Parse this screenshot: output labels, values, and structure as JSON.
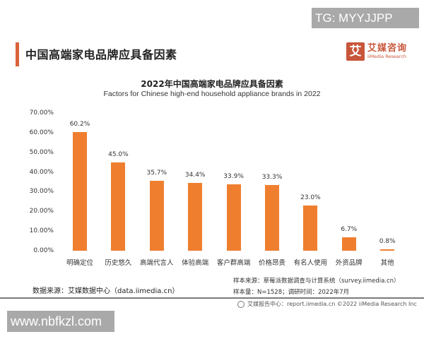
{
  "watermark_top": "TG: MYYJJPP",
  "watermark_bottom": "www.nbfkzl.com",
  "header": {
    "title": "中国高端家电品牌应具备因素",
    "accent_color": "#d9623b"
  },
  "logo": {
    "mark": "艾",
    "name_cn": "艾媒咨询",
    "name_en": "iiMedia Research",
    "color": "#c8563a"
  },
  "chart_data": {
    "type": "bar",
    "title": "2022年中国高端家电品牌应具备因素",
    "subtitle": "Factors for Chinese high-end household appliance brands in 2022",
    "categories": [
      "明确定位",
      "历史悠久",
      "高端代言人",
      "体验高端",
      "客户群高端",
      "价格昂贵",
      "有名人使用",
      "外资品牌",
      "其他"
    ],
    "values": [
      60.2,
      45.0,
      35.7,
      34.4,
      33.9,
      33.3,
      23.0,
      6.7,
      0.8
    ],
    "value_labels": [
      "60.2%",
      "45.0%",
      "35.7%",
      "34.4%",
      "33.9%",
      "33.3%",
      "23.0%",
      "6.7%",
      "0.8%"
    ],
    "yticks": [
      "0.00%",
      "10.00%",
      "20.00%",
      "30.00%",
      "40.00%",
      "50.00%",
      "60.00%",
      "70.00%"
    ],
    "xlabel": "",
    "ylabel": "",
    "ylim": [
      0,
      70
    ],
    "grid": false,
    "legend": "none",
    "bar_color": "#ef7f2f"
  },
  "footer": {
    "data_source": "数据来源：艾媒数据中心（data.iimedia.cn）",
    "sample_source": "样本来源：草莓派数据调查与计算系统（survey.iimedia.cn）",
    "sample_size": "样本量：N=1528；调研时间：2022年7月",
    "copyright": "艾媒报告中心：report.iimedia.cn  ©2022 iiMedia Research Inc"
  }
}
